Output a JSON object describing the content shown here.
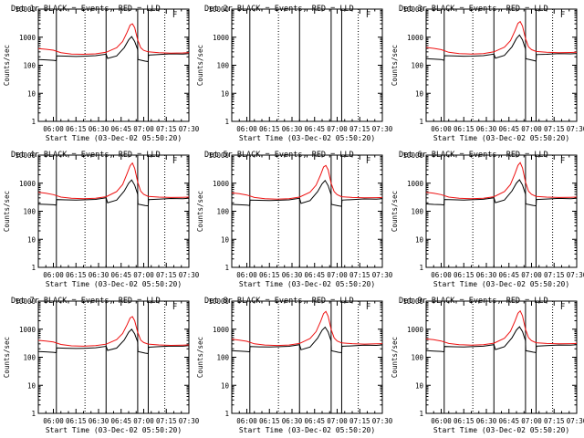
{
  "page_title": "Det 1r-9r BLACK = Events, RED = LLD",
  "colors": {
    "events": "#000000",
    "lld": "#ee1111",
    "axis": "#000000",
    "background": "#ffffff"
  },
  "shared": {
    "xlabel": "Start Time (03-Dec-02 05:50:20)",
    "ylabel": "Counts/sec",
    "x_ticks": [
      "06:00",
      "06:15",
      "06:30",
      "06:45",
      "07:00",
      "07:15",
      "07:30"
    ],
    "y_ticks": [
      "1",
      "10",
      "100",
      "1000",
      "10000"
    ],
    "xlim_minutes_after_0550": [
      0,
      100
    ],
    "ylim": [
      1,
      10000
    ],
    "yscale": "log",
    "marker_flags": [
      "F",
      "F",
      "F",
      "F",
      "F",
      "F",
      "F",
      "F",
      "F"
    ]
  },
  "chart_data": [
    {
      "type": "line",
      "title": "Det 1r BLACK = Events, RED = LLD",
      "solid_lines": [
        12,
        45,
        66,
        73
      ],
      "dotted_lines": [
        31,
        84
      ],
      "flag_at": 89,
      "series": [
        {
          "name": "Events",
          "color": "black",
          "x": [
            0,
            5,
            10,
            11.9,
            12.1,
            18,
            25,
            30,
            38,
            45,
            46,
            52,
            57,
            60,
            62,
            64,
            66,
            66.2,
            71,
            73,
            73.2,
            80,
            88,
            96,
            100
          ],
          "y": [
            160,
            155,
            150,
            145,
            215,
            212,
            205,
            210,
            220,
            248,
            175,
            215,
            420,
            800,
            1050,
            700,
            360,
            160,
            140,
            135,
            230,
            240,
            255,
            250,
            260
          ]
        },
        {
          "name": "LLD",
          "color": "red",
          "x": [
            0,
            5,
            10,
            15,
            22,
            30,
            38,
            45,
            52,
            56,
            59,
            61,
            62.5,
            64,
            66,
            68,
            70,
            73,
            80,
            88,
            96,
            100
          ],
          "y": [
            390,
            370,
            345,
            280,
            250,
            245,
            255,
            290,
            420,
            700,
            1500,
            2700,
            3000,
            2200,
            800,
            420,
            340,
            300,
            280,
            270,
            275,
            280
          ]
        }
      ]
    },
    {
      "type": "line",
      "title": "Det 2r BLACK = Events, RED = LLD",
      "solid_lines": [
        12,
        45,
        66,
        73
      ],
      "dotted_lines": [
        31,
        84
      ],
      "flag_at": 89,
      "series": []
    },
    {
      "type": "line",
      "title": "Det 3r BLACK = Events, RED = LLD",
      "solid_lines": [
        12,
        45,
        66,
        73
      ],
      "dotted_lines": [
        31,
        84
      ],
      "flag_at": 89,
      "series": [
        {
          "name": "Events",
          "color": "black",
          "x": [
            0,
            5,
            10,
            11.9,
            12.1,
            18,
            25,
            30,
            38,
            45,
            46,
            52,
            57,
            60,
            62,
            64,
            66,
            66.2,
            71,
            73,
            73.2,
            80,
            88,
            96,
            100
          ],
          "y": [
            170,
            165,
            160,
            150,
            220,
            215,
            210,
            212,
            220,
            250,
            180,
            225,
            450,
            900,
            1200,
            800,
            380,
            170,
            150,
            140,
            240,
            245,
            260,
            255,
            262
          ]
        },
        {
          "name": "LLD",
          "color": "red",
          "x": [
            0,
            5,
            10,
            15,
            22,
            30,
            38,
            45,
            52,
            56,
            59,
            61,
            62.5,
            64,
            66,
            68,
            70,
            73,
            80,
            88,
            96,
            100
          ],
          "y": [
            430,
            400,
            360,
            290,
            260,
            250,
            260,
            300,
            440,
            750,
            1700,
            3100,
            3600,
            2500,
            900,
            450,
            360,
            310,
            290,
            280,
            285,
            290
          ]
        }
      ]
    },
    {
      "type": "line",
      "title": "Det 4r BLACK = Events, RED = LLD",
      "solid_lines": [
        12,
        45,
        66,
        73
      ],
      "dotted_lines": [
        31,
        84
      ],
      "flag_at": 89,
      "series": [
        {
          "name": "Events",
          "color": "black",
          "x": [
            0,
            5,
            10,
            11.9,
            12.1,
            18,
            25,
            30,
            38,
            45,
            46,
            52,
            57,
            60,
            62,
            64,
            66,
            66.2,
            71,
            73,
            73.2,
            80,
            88,
            96,
            100
          ],
          "y": [
            180,
            175,
            170,
            165,
            260,
            255,
            250,
            255,
            265,
            300,
            200,
            250,
            520,
            1000,
            1300,
            850,
            400,
            180,
            160,
            155,
            260,
            270,
            285,
            280,
            290
          ]
        },
        {
          "name": "LLD",
          "color": "red",
          "x": [
            0,
            5,
            10,
            15,
            22,
            30,
            38,
            45,
            52,
            56,
            59,
            61,
            62.5,
            64,
            66,
            68,
            70,
            73,
            80,
            88,
            96,
            100
          ],
          "y": [
            470,
            440,
            390,
            320,
            290,
            280,
            290,
            330,
            500,
            900,
            2200,
            4200,
            5200,
            3400,
            1100,
            520,
            400,
            340,
            320,
            310,
            315,
            320
          ]
        }
      ]
    },
    {
      "type": "line",
      "title": "Det 5r BLACK = Events, RED = LLD",
      "solid_lines": [
        12,
        45,
        66,
        73
      ],
      "dotted_lines": [
        31,
        84
      ],
      "flag_at": 89,
      "series": [
        {
          "name": "Events",
          "color": "black",
          "x": [
            0,
            5,
            10,
            11.9,
            12.1,
            18,
            25,
            30,
            38,
            45,
            46,
            52,
            57,
            60,
            62,
            64,
            66,
            66.2,
            71,
            73,
            73.2,
            80,
            88,
            96,
            100
          ],
          "y": [
            175,
            170,
            165,
            160,
            250,
            245,
            240,
            245,
            255,
            290,
            190,
            240,
            500,
            950,
            1250,
            820,
            390,
            175,
            155,
            150,
            250,
            260,
            275,
            270,
            280
          ]
        },
        {
          "name": "LLD",
          "color": "red",
          "x": [
            0,
            5,
            10,
            15,
            22,
            30,
            38,
            45,
            52,
            56,
            59,
            61,
            62.5,
            64,
            66,
            68,
            70,
            73,
            80,
            88,
            96,
            100
          ],
          "y": [
            450,
            420,
            380,
            310,
            280,
            270,
            280,
            320,
            480,
            850,
            2000,
            3800,
            4300,
            3000,
            1000,
            500,
            390,
            330,
            310,
            300,
            305,
            310
          ]
        }
      ]
    },
    {
      "type": "line",
      "title": "Det 6r BLACK = Events, RED = LLD",
      "solid_lines": [
        12,
        45,
        66,
        73
      ],
      "dotted_lines": [
        31,
        84
      ],
      "flag_at": 89,
      "series": [
        {
          "name": "Events",
          "color": "black",
          "x": [
            0,
            5,
            10,
            11.9,
            12.1,
            18,
            25,
            30,
            38,
            45,
            46,
            52,
            57,
            60,
            62,
            64,
            66,
            66.2,
            71,
            73,
            73.2,
            80,
            88,
            96,
            100
          ],
          "y": [
            182,
            176,
            172,
            166,
            262,
            256,
            252,
            256,
            266,
            302,
            202,
            252,
            525,
            1010,
            1320,
            860,
            405,
            182,
            162,
            156,
            262,
            272,
            287,
            282,
            292
          ]
        },
        {
          "name": "LLD",
          "color": "red",
          "x": [
            0,
            5,
            10,
            15,
            22,
            30,
            38,
            45,
            52,
            56,
            59,
            61,
            62.5,
            64,
            66,
            68,
            70,
            73,
            80,
            88,
            96,
            100
          ],
          "y": [
            470,
            440,
            390,
            320,
            290,
            280,
            290,
            330,
            500,
            900,
            2200,
            4300,
            5400,
            3500,
            1100,
            520,
            400,
            340,
            320,
            310,
            315,
            320
          ]
        }
      ]
    },
    {
      "type": "line",
      "title": "Det 7r BLACK = Events, RED = LLD",
      "solid_lines": [
        12,
        45,
        66,
        73
      ],
      "dotted_lines": [
        31,
        84
      ],
      "flag_at": 89,
      "series": [
        {
          "name": "Events",
          "color": "black",
          "x": [
            0,
            5,
            10,
            11.9,
            12.1,
            18,
            25,
            30,
            38,
            45,
            46,
            52,
            57,
            60,
            62,
            64,
            66,
            66.2,
            71,
            73,
            73.2,
            80,
            88,
            96,
            100
          ],
          "y": [
            160,
            155,
            150,
            145,
            215,
            210,
            205,
            208,
            218,
            245,
            175,
            212,
            410,
            780,
            1000,
            680,
            350,
            160,
            140,
            135,
            228,
            238,
            252,
            248,
            258
          ]
        },
        {
          "name": "LLD",
          "color": "red",
          "x": [
            0,
            5,
            10,
            15,
            22,
            30,
            38,
            45,
            52,
            56,
            59,
            61,
            62.5,
            64,
            66,
            68,
            70,
            73,
            80,
            88,
            96,
            100
          ],
          "y": [
            400,
            380,
            350,
            285,
            255,
            248,
            258,
            292,
            425,
            700,
            1450,
            2500,
            2800,
            2000,
            780,
            410,
            335,
            295,
            275,
            265,
            270,
            275
          ]
        }
      ]
    },
    {
      "type": "line",
      "title": "Det 8r BLACK = Events, RED = LLD",
      "solid_lines": [
        12,
        45,
        66,
        73
      ],
      "dotted_lines": [
        31,
        84
      ],
      "flag_at": 89,
      "series": [
        {
          "name": "Events",
          "color": "black",
          "x": [
            0,
            5,
            10,
            11.9,
            12.1,
            18,
            25,
            30,
            38,
            45,
            46,
            52,
            57,
            60,
            62,
            64,
            66,
            66.2,
            71,
            73,
            73.2,
            80,
            88,
            96,
            100
          ],
          "y": [
            170,
            165,
            160,
            155,
            240,
            235,
            232,
            236,
            246,
            280,
            185,
            232,
            480,
            920,
            1180,
            800,
            380,
            170,
            150,
            145,
            245,
            255,
            270,
            265,
            275
          ]
        },
        {
          "name": "LLD",
          "color": "red",
          "x": [
            0,
            5,
            10,
            15,
            22,
            30,
            38,
            45,
            52,
            56,
            59,
            61,
            62.5,
            64,
            66,
            68,
            70,
            73,
            80,
            88,
            96,
            100
          ],
          "y": [
            440,
            410,
            370,
            300,
            272,
            262,
            272,
            310,
            465,
            820,
            1900,
            3600,
            4300,
            2900,
            980,
            490,
            380,
            325,
            305,
            295,
            300,
            305
          ]
        }
      ]
    },
    {
      "type": "line",
      "title": "Det 9r BLACK = Events, RED = LLD",
      "solid_lines": [
        12,
        45,
        66,
        73
      ],
      "dotted_lines": [
        31,
        84
      ],
      "flag_at": 89,
      "series": [
        {
          "name": "Events",
          "color": "black",
          "x": [
            0,
            5,
            10,
            11.9,
            12.1,
            18,
            25,
            30,
            38,
            45,
            46,
            52,
            57,
            60,
            62,
            64,
            66,
            66.2,
            71,
            73,
            73.2,
            80,
            88,
            96,
            100
          ],
          "y": [
            172,
            167,
            162,
            156,
            242,
            237,
            233,
            238,
            248,
            282,
            188,
            236,
            490,
            940,
            1220,
            820,
            385,
            172,
            152,
            147,
            248,
            258,
            272,
            268,
            278
          ]
        },
        {
          "name": "LLD",
          "color": "red",
          "x": [
            0,
            5,
            10,
            15,
            22,
            30,
            38,
            45,
            52,
            56,
            59,
            61,
            62.5,
            64,
            66,
            68,
            70,
            73,
            80,
            88,
            96,
            100
          ],
          "y": [
            450,
            420,
            380,
            310,
            280,
            270,
            280,
            318,
            475,
            840,
            1950,
            3700,
            4500,
            3000,
            1000,
            500,
            390,
            330,
            310,
            300,
            305,
            310
          ]
        }
      ]
    }
  ]
}
